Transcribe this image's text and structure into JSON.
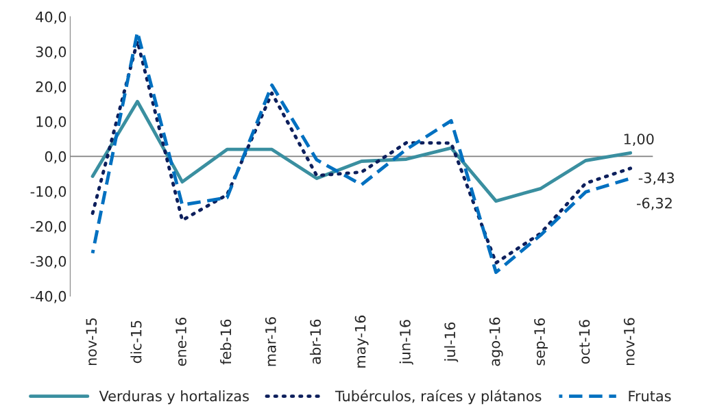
{
  "chart_data": {
    "type": "line",
    "categories": [
      "nov-15",
      "dic-15",
      "ene-16",
      "feb-16",
      "mar-16",
      "abr-16",
      "may-16",
      "jun-16",
      "jul-16",
      "ago-16",
      "sep-16",
      "oct-16",
      "nov-16"
    ],
    "series": [
      {
        "name": "Verduras y hortalizas",
        "color": "#3a8fa0",
        "line_style": "solid",
        "values": [
          -5.7,
          15.7,
          -7.3,
          2.0,
          2.0,
          -6.3,
          -1.4,
          -0.8,
          2.4,
          -12.8,
          -9.2,
          -1.2,
          1.0
        ],
        "value_labels": [
          null,
          null,
          null,
          null,
          null,
          null,
          null,
          null,
          null,
          null,
          null,
          null,
          "1,00"
        ]
      },
      {
        "name": "Tubérculos, raíces y plátanos",
        "color": "#0d1f5c",
        "line_style": "dotted",
        "values": [
          -16.3,
          33.0,
          -18.3,
          -11.0,
          18.1,
          -5.5,
          -4.5,
          3.9,
          3.8,
          -30.5,
          -22.0,
          -7.7,
          -3.43
        ],
        "value_labels": [
          null,
          null,
          null,
          null,
          null,
          null,
          null,
          null,
          null,
          null,
          null,
          null,
          "-3,43"
        ]
      },
      {
        "name": "Frutas",
        "color": "#0070c0",
        "line_style": "dashed",
        "values": [
          -27.7,
          35.6,
          -13.9,
          -11.8,
          20.4,
          -1.0,
          -8.1,
          2.0,
          10.2,
          -33.2,
          -22.5,
          -10.2,
          -6.32
        ],
        "value_labels": [
          null,
          null,
          null,
          null,
          null,
          null,
          null,
          null,
          null,
          null,
          null,
          null,
          "-6,32"
        ]
      }
    ],
    "ylim": [
      -40,
      40
    ],
    "yticks": [
      {
        "value": -40,
        "label": "-40,0"
      },
      {
        "value": -30,
        "label": "-30,0"
      },
      {
        "value": -20,
        "label": "-20,0"
      },
      {
        "value": -10,
        "label": "-10,0"
      },
      {
        "value": 0,
        "label": "0,0"
      },
      {
        "value": 10,
        "label": "10,0"
      },
      {
        "value": 20,
        "label": "20,0"
      },
      {
        "value": 30,
        "label": "30,0"
      },
      {
        "value": 40,
        "label": "40,0"
      }
    ],
    "ref_lines": [
      {
        "axis": "y",
        "value": 0,
        "color": "#808080"
      }
    ],
    "grid": false,
    "legend": "bottom"
  }
}
